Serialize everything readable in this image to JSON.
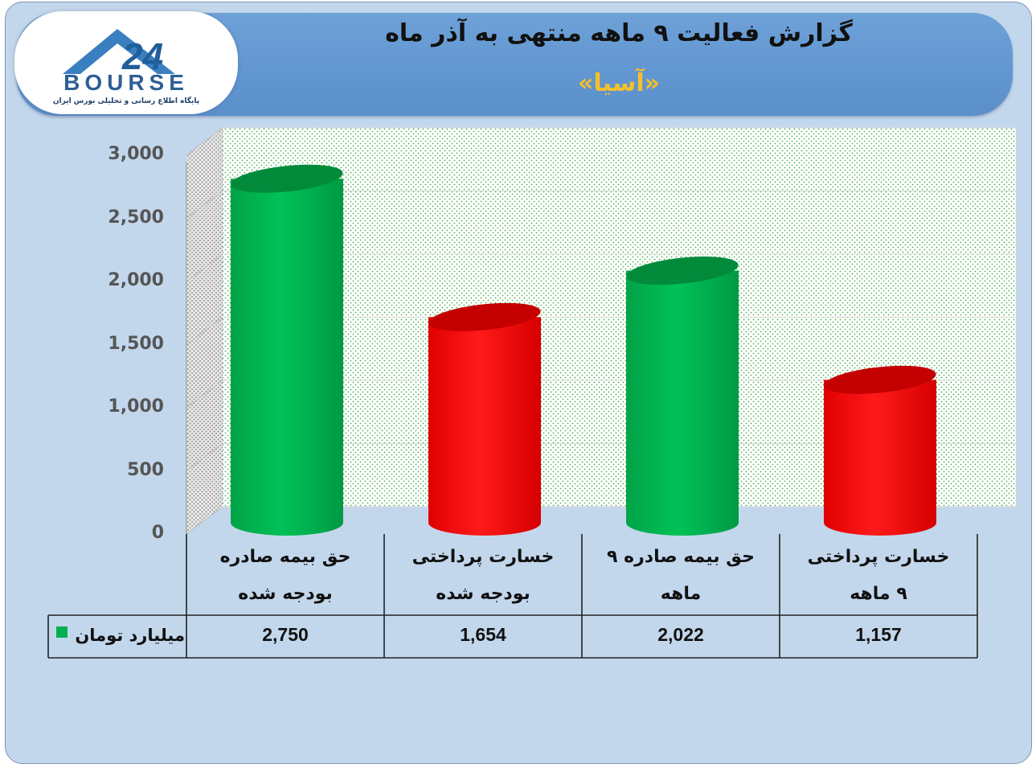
{
  "header": {
    "title": "گزارش فعالیت ۹ ماهه منتهی به آذر ماه",
    "subtitle": "«آسیا»"
  },
  "logo": {
    "brand": "BOURSE",
    "number": "24",
    "tagline": "پایگاه اطلاع رسانی و تحلیلی بورس ایران"
  },
  "colors": {
    "green": "#00b050",
    "red": "#ff0000",
    "legend": "#00b050"
  },
  "chart_data": {
    "type": "bar",
    "title": "",
    "xlabel": "",
    "ylabel": "",
    "ylim": [
      0,
      3000
    ],
    "yticks": [
      "0",
      "500",
      "1,000",
      "1,500",
      "2,000",
      "2,500",
      "3,000"
    ],
    "categories": [
      [
        "حق بیمه صادره",
        "بودجه شده"
      ],
      [
        "خسارت پرداختی",
        "بودجه شده"
      ],
      [
        "حق بیمه صادره ۹",
        "ماهه"
      ],
      [
        "خسارت پرداختی",
        "۹ ماهه"
      ]
    ],
    "series": [
      {
        "name": "میلیارد تومان",
        "values": [
          2750,
          1654,
          2022,
          1157
        ],
        "value_labels": [
          "2,750",
          "1,654",
          "2,022",
          "1,157"
        ],
        "bar_colors": [
          "green",
          "red",
          "green",
          "red"
        ]
      }
    ],
    "grid": true,
    "legend": "data-table-left"
  }
}
